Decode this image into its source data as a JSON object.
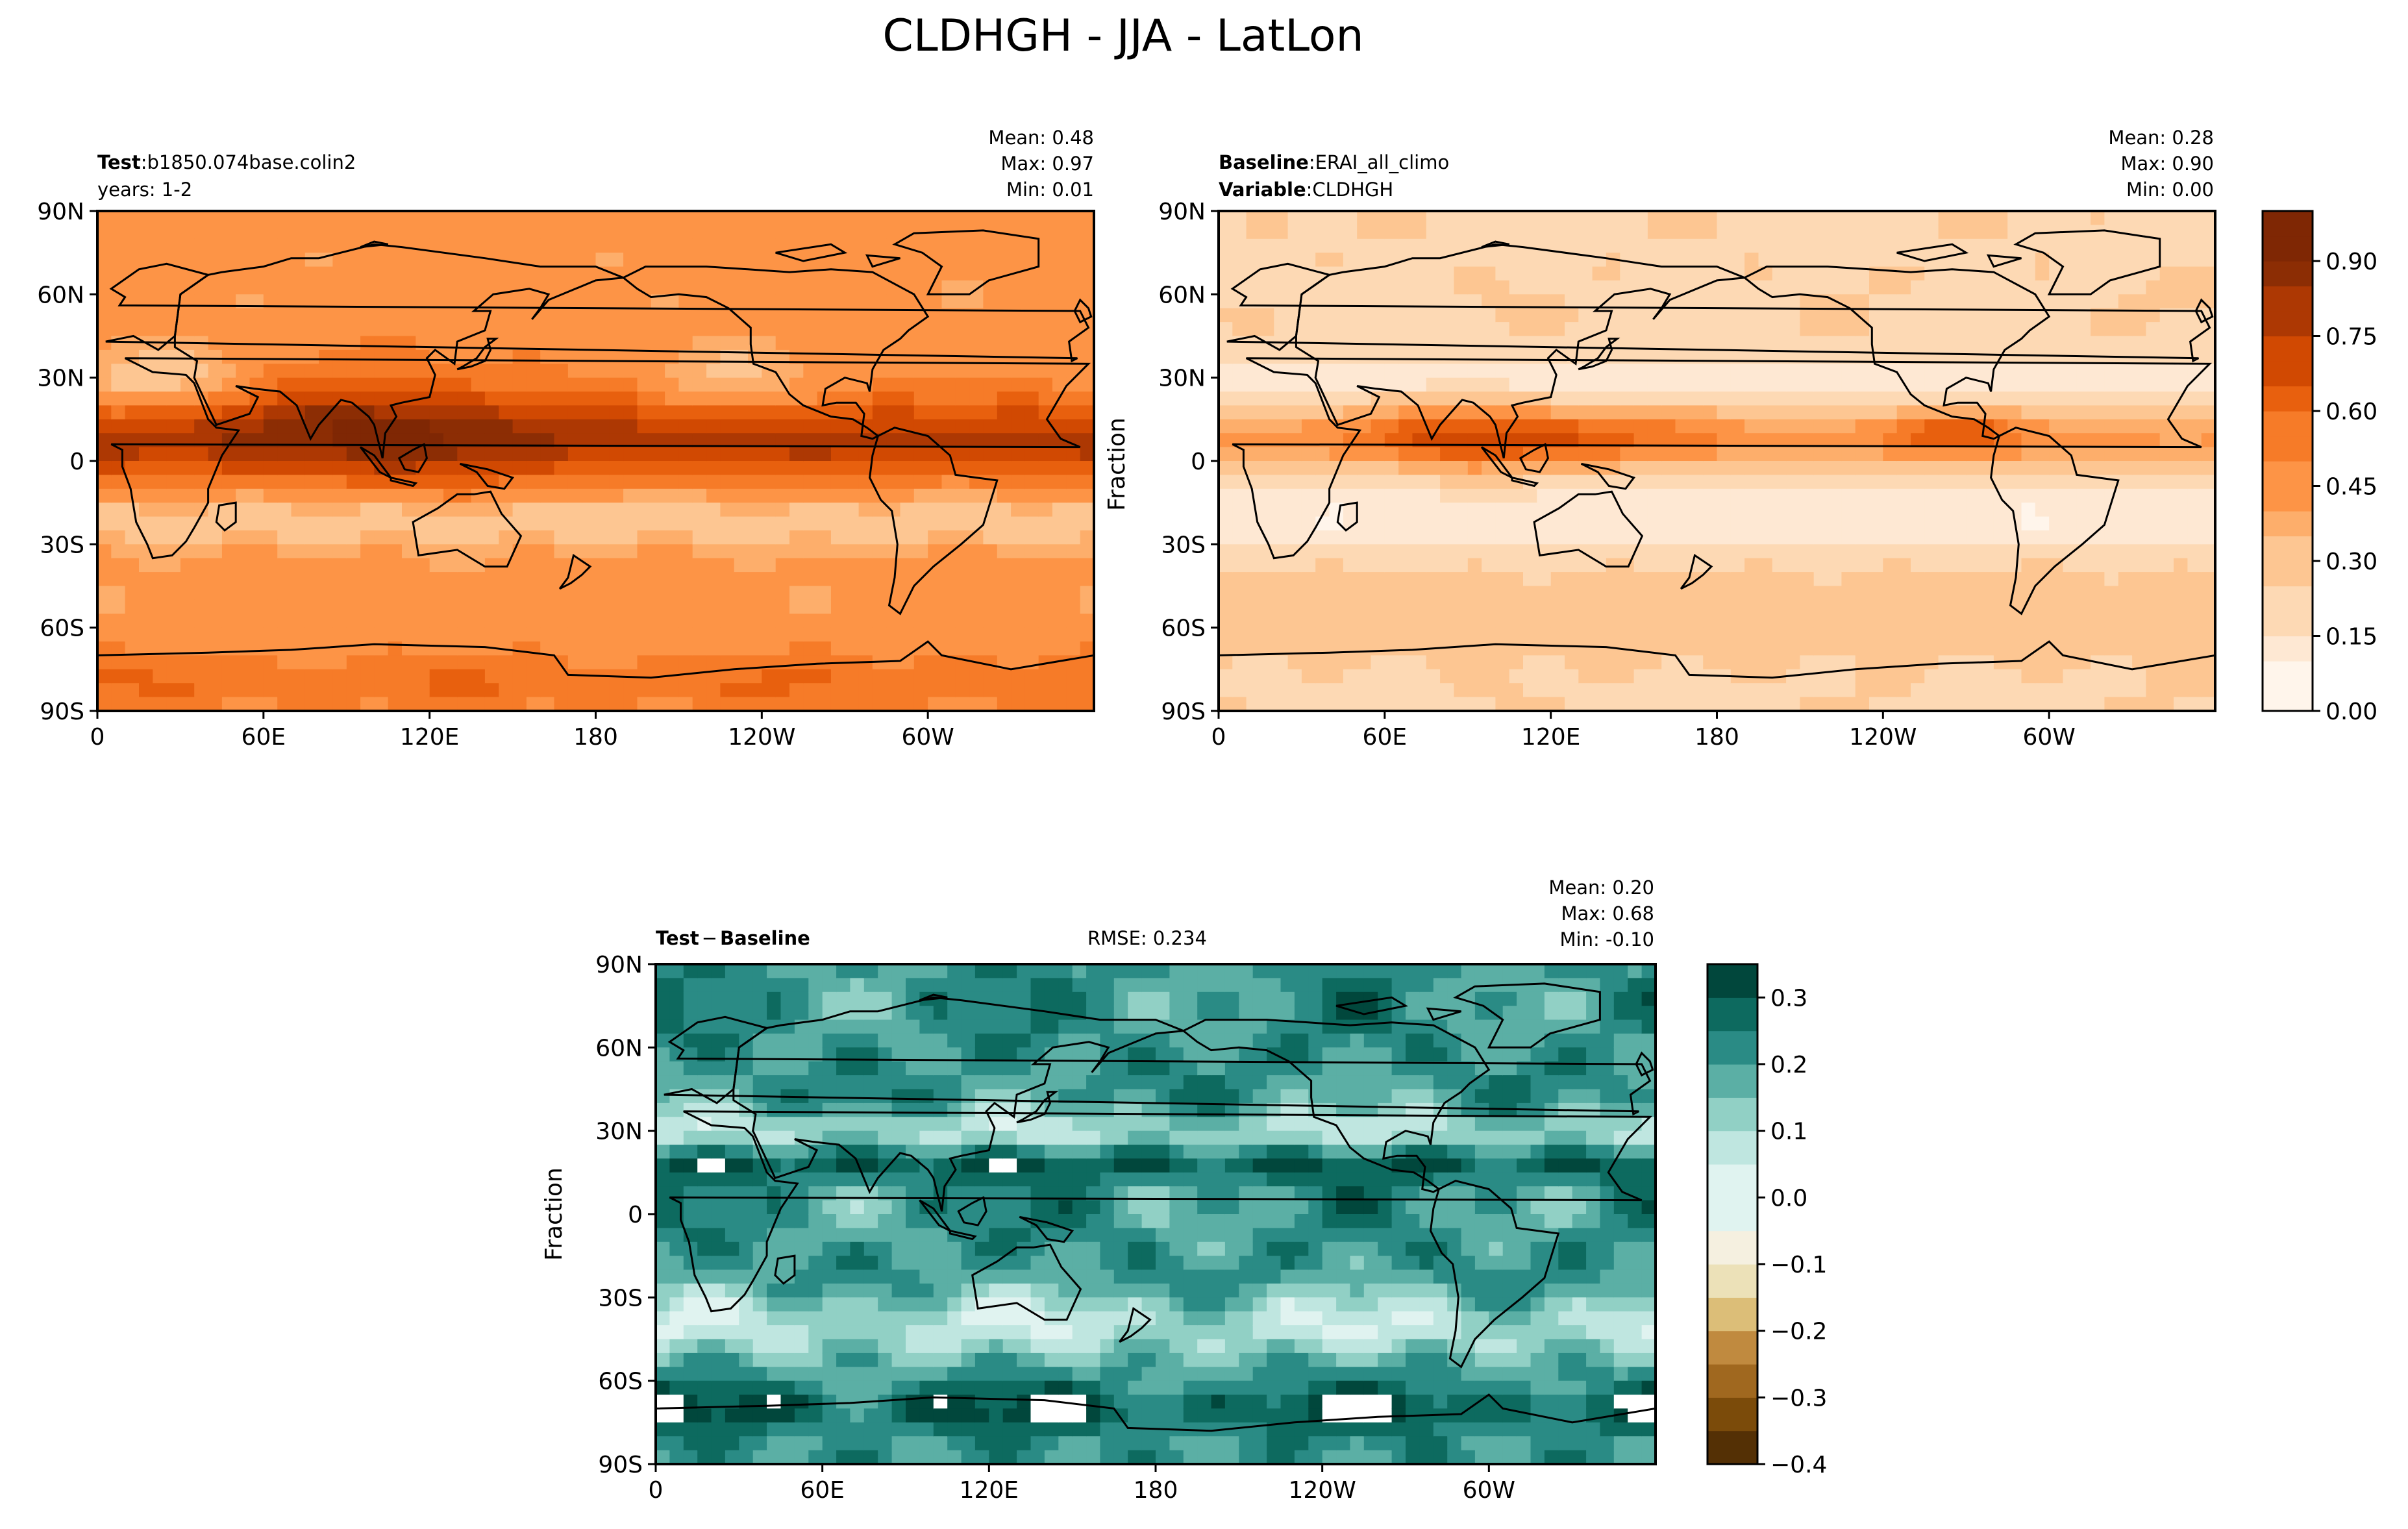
{
  "title": "CLDHGH - JJA - LatLon",
  "colors": {
    "seq": [
      "#fff5eb",
      "#fee8d3",
      "#fdd9b4",
      "#fdc692",
      "#fdae6b",
      "#fd9446",
      "#f67b28",
      "#e8600e",
      "#d14902",
      "#ad3803",
      "#8c2d04",
      "#7f2704"
    ],
    "div": [
      "#543005",
      "#7b4b0a",
      "#a0681f",
      "#c08a3f",
      "#dcbe78",
      "#ece1b8",
      "#f5f0e0",
      "#e0f3f0",
      "#bfe6e0",
      "#91d0c5",
      "#5bafa5",
      "#2a8b85",
      "#0d6a5f",
      "#01473c"
    ],
    "land_outline": "#000000"
  },
  "axes": {
    "x_ticks": [
      "0",
      "60E",
      "120E",
      "180",
      "120W",
      "60W"
    ],
    "y_ticks": [
      "90N",
      "60N",
      "30N",
      "0",
      "30S",
      "60S",
      "90S"
    ]
  },
  "panels": {
    "test": {
      "label_bold": "Test",
      "sep": ":",
      "label_value": "b1850.074base.colin2",
      "line2": "years: 1-2",
      "stats": {
        "mean": "Mean:  0.48",
        "max": "Max:  0.97",
        "min": "Min:  0.01"
      }
    },
    "baseline": {
      "label_bold": "Baseline",
      "sep": ":",
      "label_value": "ERAI_all_climo",
      "line2_bold": "Variable",
      "line2_value": "CLDHGH",
      "ylabel": "Fraction",
      "stats": {
        "mean": "Mean:  0.28",
        "max": "Max:  0.90",
        "min": "Min:  0.00"
      }
    },
    "diff": {
      "label_bold": "Test",
      "label_op": "−",
      "label_bold2": "Baseline",
      "rmse": "RMSE: 0.234",
      "ylabel": "Fraction",
      "stats": {
        "mean": "Mean:  0.20",
        "max": "Max:  0.68",
        "min": "Min: -0.10"
      }
    }
  },
  "chart_data": [
    {
      "type": "heatmap",
      "name": "test",
      "x_range": [
        0,
        360
      ],
      "y_range": [
        -90,
        90
      ],
      "value_range": [
        0.01,
        0.97
      ],
      "mean": 0.48
    },
    {
      "type": "heatmap",
      "name": "baseline",
      "x_range": [
        0,
        360
      ],
      "y_range": [
        -90,
        90
      ],
      "value_range": [
        0.0,
        0.9
      ],
      "mean": 0.28
    },
    {
      "type": "heatmap",
      "name": "test-minus-baseline",
      "x_range": [
        0,
        360
      ],
      "y_range": [
        -90,
        90
      ],
      "value_range": [
        -0.1,
        0.68
      ],
      "mean": 0.2,
      "rmse": 0.234
    },
    {
      "type": "colorbar",
      "name": "sequential",
      "range": [
        0,
        1.0
      ],
      "levels": 20,
      "tick_values": [
        0.0,
        0.15,
        0.3,
        0.45,
        0.6,
        0.75,
        0.9
      ],
      "tick_labels": [
        "0.00",
        "0.15",
        "0.30",
        "0.45",
        "0.60",
        "0.75",
        "0.90"
      ]
    },
    {
      "type": "colorbar",
      "name": "diverging",
      "range": [
        -0.4,
        0.35
      ],
      "levels": 15,
      "tick_values": [
        -0.4,
        -0.3,
        -0.2,
        -0.1,
        0.0,
        0.1,
        0.2,
        0.3
      ],
      "tick_labels": [
        "−0.4",
        "−0.3",
        "−0.2",
        "−0.1",
        "0.0",
        "0.1",
        "0.2",
        "0.3"
      ]
    }
  ]
}
